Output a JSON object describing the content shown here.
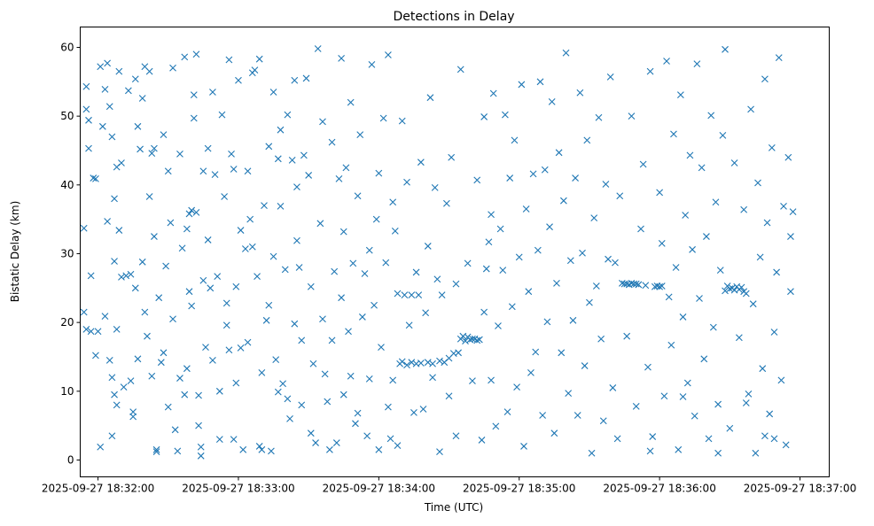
{
  "chart_data": {
    "type": "scatter",
    "title": "Detections in Delay",
    "xlabel": "Time (UTC)",
    "ylabel": "Bistatic Delay (km)",
    "x_unit": "seconds since 2025-09-27 18:32:00 UTC",
    "xlim": [
      -7.6,
      312.5
    ],
    "ylim": [
      -2.45,
      62.96
    ],
    "x_ticks": [
      0,
      60,
      120,
      180,
      240,
      300
    ],
    "x_tick_labels": [
      "2025-09-27 18:32:00",
      "2025-09-27 18:33:00",
      "2025-09-27 18:34:00",
      "2025-09-27 18:35:00",
      "2025-09-27 18:36:00",
      "2025-09-27 18:37:00"
    ],
    "y_ticks": [
      0,
      10,
      20,
      30,
      40,
      50,
      60
    ],
    "y_tick_labels": [
      "0",
      "10",
      "20",
      "30",
      "40",
      "50",
      "60"
    ],
    "marker": "x",
    "color": "#1f77b4",
    "grid": false,
    "points": [
      [
        -6,
        33.7
      ],
      [
        -6,
        21.5
      ],
      [
        -5,
        51
      ],
      [
        -5,
        54.3
      ],
      [
        -5,
        19
      ],
      [
        -4,
        49.4
      ],
      [
        -4,
        45.3
      ],
      [
        -3,
        26.8
      ],
      [
        -3,
        18.7
      ],
      [
        -2,
        41
      ],
      [
        -1,
        40.9
      ],
      [
        -1,
        15.2
      ],
      [
        0,
        18.7
      ],
      [
        1,
        1.9
      ],
      [
        1,
        57.2
      ],
      [
        2,
        48.5
      ],
      [
        3,
        53.9
      ],
      [
        3,
        20.9
      ],
      [
        4,
        57.7
      ],
      [
        4,
        34.7
      ],
      [
        5,
        14.5
      ],
      [
        5,
        51.4
      ],
      [
        6,
        47
      ],
      [
        6,
        3.5
      ],
      [
        6,
        12
      ],
      [
        7,
        9.5
      ],
      [
        7,
        38
      ],
      [
        7,
        28.9
      ],
      [
        8,
        42.6
      ],
      [
        8,
        8
      ],
      [
        8,
        19
      ],
      [
        9,
        56.5
      ],
      [
        9,
        33.4
      ],
      [
        10,
        26.6
      ],
      [
        10,
        43.2
      ],
      [
        11,
        10.6
      ],
      [
        12,
        26.8
      ],
      [
        13,
        53.7
      ],
      [
        14,
        11.5
      ],
      [
        14,
        27
      ],
      [
        15,
        7
      ],
      [
        15,
        6.3
      ],
      [
        16,
        25
      ],
      [
        16,
        55.4
      ],
      [
        17,
        48.5
      ],
      [
        17,
        14.7
      ],
      [
        18,
        45.2
      ],
      [
        19,
        28.8
      ],
      [
        19,
        52.6
      ],
      [
        20,
        57.2
      ],
      [
        20,
        21.5
      ],
      [
        21,
        18
      ],
      [
        22,
        56.5
      ],
      [
        22,
        38.3
      ],
      [
        23,
        44.6
      ],
      [
        23,
        12.2
      ],
      [
        24,
        32.5
      ],
      [
        24,
        45.3
      ],
      [
        25,
        1.2
      ],
      [
        25,
        1.5
      ],
      [
        26,
        23.6
      ],
      [
        27,
        14.2
      ],
      [
        28,
        47.3
      ],
      [
        28,
        15.6
      ],
      [
        29,
        28.2
      ],
      [
        30,
        42
      ],
      [
        30,
        7.7
      ],
      [
        31,
        34.5
      ],
      [
        32,
        20.5
      ],
      [
        32,
        57
      ],
      [
        33,
        4.4
      ],
      [
        34,
        1.3
      ],
      [
        35,
        11.9
      ],
      [
        35,
        44.5
      ],
      [
        36,
        30.8
      ],
      [
        37,
        58.6
      ],
      [
        37,
        9.5
      ],
      [
        38,
        13.3
      ],
      [
        38,
        33.6
      ],
      [
        39,
        35.8
      ],
      [
        39,
        24.5
      ],
      [
        40,
        36.3
      ],
      [
        40,
        22.4
      ],
      [
        41,
        53.1
      ],
      [
        41,
        49.7
      ],
      [
        42,
        59
      ],
      [
        42,
        36
      ],
      [
        43,
        9.4
      ],
      [
        43,
        5
      ],
      [
        44,
        0.6
      ],
      [
        44,
        1.9
      ],
      [
        45,
        26.1
      ],
      [
        45,
        42
      ],
      [
        46,
        16.4
      ],
      [
        47,
        45.3
      ],
      [
        47,
        32
      ],
      [
        48,
        25
      ],
      [
        49,
        53.5
      ],
      [
        49,
        14.5
      ],
      [
        50,
        41.5
      ],
      [
        51,
        26.7
      ],
      [
        52,
        10
      ],
      [
        52,
        3
      ],
      [
        53,
        50.2
      ],
      [
        54,
        38.3
      ],
      [
        55,
        22.8
      ],
      [
        55,
        19.6
      ],
      [
        56,
        58.2
      ],
      [
        56,
        16
      ],
      [
        57,
        44.5
      ],
      [
        58,
        3
      ],
      [
        58,
        42.3
      ],
      [
        59,
        25.2
      ],
      [
        59,
        11.2
      ],
      [
        60,
        55.2
      ],
      [
        61,
        16.3
      ],
      [
        61,
        33.4
      ],
      [
        62,
        1.5
      ],
      [
        63,
        30.7
      ],
      [
        64,
        17.1
      ],
      [
        64,
        42
      ],
      [
        65,
        35
      ],
      [
        66,
        56.3
      ],
      [
        66,
        31
      ],
      [
        67,
        56.7
      ],
      [
        68,
        26.7
      ],
      [
        69,
        58.3
      ],
      [
        69,
        2
      ],
      [
        70,
        1.5
      ],
      [
        70,
        12.7
      ],
      [
        71,
        37
      ],
      [
        72,
        20.3
      ],
      [
        73,
        45.6
      ],
      [
        73,
        22.5
      ],
      [
        74,
        1.3
      ],
      [
        75,
        53.5
      ],
      [
        75,
        29.6
      ],
      [
        76,
        14.6
      ],
      [
        77,
        9.9
      ],
      [
        77,
        43.8
      ],
      [
        78,
        48
      ],
      [
        78,
        36.9
      ],
      [
        79,
        11.1
      ],
      [
        80,
        27.7
      ],
      [
        81,
        50.2
      ],
      [
        81,
        8.9
      ],
      [
        82,
        6
      ],
      [
        83,
        43.6
      ],
      [
        84,
        19.8
      ],
      [
        84,
        55.2
      ],
      [
        85,
        31.9
      ],
      [
        85,
        39.7
      ],
      [
        86,
        28
      ],
      [
        87,
        8
      ],
      [
        87,
        17.4
      ],
      [
        88,
        44.3
      ],
      [
        89,
        55.5
      ],
      [
        90,
        41.4
      ],
      [
        91,
        25.2
      ],
      [
        91,
        3.9
      ],
      [
        92,
        14
      ],
      [
        93,
        2.5
      ],
      [
        94,
        59.8
      ],
      [
        95,
        34.4
      ],
      [
        96,
        20.5
      ],
      [
        96,
        49.2
      ],
      [
        97,
        12.5
      ],
      [
        98,
        8.5
      ],
      [
        99,
        1.5
      ],
      [
        100,
        17.4
      ],
      [
        100,
        46.2
      ],
      [
        101,
        27.4
      ],
      [
        102,
        2.5
      ],
      [
        103,
        40.9
      ],
      [
        104,
        23.6
      ],
      [
        104,
        58.4
      ],
      [
        105,
        9.5
      ],
      [
        105,
        33.2
      ],
      [
        106,
        42.5
      ],
      [
        107,
        18.7
      ],
      [
        108,
        52
      ],
      [
        108,
        12.2
      ],
      [
        109,
        28.6
      ],
      [
        110,
        5.3
      ],
      [
        111,
        6.8
      ],
      [
        111,
        38.4
      ],
      [
        112,
        47.3
      ],
      [
        113,
        20.8
      ],
      [
        114,
        27.1
      ],
      [
        115,
        3.5
      ],
      [
        116,
        30.5
      ],
      [
        116,
        11.8
      ],
      [
        117,
        57.5
      ],
      [
        118,
        22.5
      ],
      [
        119,
        35
      ],
      [
        120,
        41.7
      ],
      [
        120,
        1.5
      ],
      [
        121,
        16.4
      ],
      [
        122,
        49.7
      ],
      [
        123,
        28.7
      ],
      [
        124,
        7.7
      ],
      [
        124,
        58.9
      ],
      [
        125,
        3.1
      ],
      [
        126,
        11.6
      ],
      [
        126,
        37.5
      ],
      [
        127,
        33.3
      ],
      [
        128,
        24.2
      ],
      [
        128,
        2.1
      ],
      [
        129,
        14
      ],
      [
        130,
        14.3
      ],
      [
        130,
        49.3
      ],
      [
        131,
        24
      ],
      [
        132,
        13.8
      ],
      [
        132,
        40.4
      ],
      [
        133,
        19.6
      ],
      [
        134,
        24
      ],
      [
        134,
        14.2
      ],
      [
        135,
        6.9
      ],
      [
        136,
        14
      ],
      [
        136,
        27.3
      ],
      [
        137,
        24
      ],
      [
        138,
        14.1
      ],
      [
        138,
        43.3
      ],
      [
        139,
        7.4
      ],
      [
        140,
        21.4
      ],
      [
        141,
        14.2
      ],
      [
        141,
        31.1
      ],
      [
        142,
        52.7
      ],
      [
        143,
        12
      ],
      [
        143,
        14
      ],
      [
        144,
        39.6
      ],
      [
        145,
        26.3
      ],
      [
        146,
        14.4
      ],
      [
        146,
        1.2
      ],
      [
        147,
        24
      ],
      [
        148,
        14.2
      ],
      [
        149,
        37.3
      ],
      [
        150,
        9.3
      ],
      [
        150,
        14.8
      ],
      [
        151,
        44
      ],
      [
        152,
        15.5
      ],
      [
        153,
        3.5
      ],
      [
        153,
        25.6
      ],
      [
        154,
        15.6
      ],
      [
        155,
        17.6
      ],
      [
        155,
        56.8
      ],
      [
        156,
        18
      ],
      [
        157,
        17.3
      ],
      [
        158,
        17.9
      ],
      [
        158,
        28.6
      ],
      [
        159,
        17.5
      ],
      [
        160,
        17.6
      ],
      [
        160,
        11.5
      ],
      [
        161,
        17.6
      ],
      [
        162,
        17.4
      ],
      [
        162,
        40.7
      ],
      [
        163,
        17.5
      ],
      [
        164,
        2.9
      ],
      [
        165,
        21.5
      ],
      [
        165,
        49.9
      ],
      [
        166,
        27.8
      ],
      [
        167,
        31.7
      ],
      [
        168,
        11.6
      ],
      [
        168,
        35.7
      ],
      [
        169,
        53.3
      ],
      [
        170,
        4.9
      ],
      [
        171,
        19.5
      ],
      [
        172,
        33.6
      ],
      [
        173,
        27.6
      ],
      [
        174,
        50.2
      ],
      [
        175,
        7
      ],
      [
        176,
        41
      ],
      [
        177,
        22.3
      ],
      [
        178,
        46.5
      ],
      [
        179,
        10.6
      ],
      [
        180,
        29.5
      ],
      [
        181,
        54.6
      ],
      [
        182,
        2
      ],
      [
        183,
        36.5
      ],
      [
        184,
        24.5
      ],
      [
        185,
        12.7
      ],
      [
        186,
        41.6
      ],
      [
        187,
        15.7
      ],
      [
        188,
        30.5
      ],
      [
        189,
        55
      ],
      [
        190,
        6.5
      ],
      [
        191,
        42.2
      ],
      [
        192,
        20.1
      ],
      [
        193,
        33.9
      ],
      [
        194,
        52.1
      ],
      [
        195,
        3.9
      ],
      [
        196,
        25.7
      ],
      [
        197,
        44.7
      ],
      [
        198,
        15.6
      ],
      [
        199,
        37.7
      ],
      [
        200,
        59.2
      ],
      [
        201,
        9.7
      ],
      [
        202,
        29
      ],
      [
        203,
        20.3
      ],
      [
        204,
        41
      ],
      [
        205,
        6.5
      ],
      [
        206,
        53.4
      ],
      [
        207,
        30.1
      ],
      [
        208,
        13.7
      ],
      [
        209,
        46.5
      ],
      [
        210,
        22.9
      ],
      [
        211,
        1
      ],
      [
        212,
        35.2
      ],
      [
        213,
        25.3
      ],
      [
        214,
        49.8
      ],
      [
        215,
        17.6
      ],
      [
        216,
        5.7
      ],
      [
        217,
        40.1
      ],
      [
        218,
        29.2
      ],
      [
        219,
        55.7
      ],
      [
        220,
        10.5
      ],
      [
        221,
        28.7
      ],
      [
        222,
        3.1
      ],
      [
        223,
        38.4
      ],
      [
        224,
        25.7
      ],
      [
        225,
        25.6
      ],
      [
        226,
        25.6
      ],
      [
        227,
        25.5
      ],
      [
        228,
        25.7
      ],
      [
        229,
        25.6
      ],
      [
        230,
        25.6
      ],
      [
        231,
        25.5
      ],
      [
        226,
        18
      ],
      [
        228,
        50
      ],
      [
        230,
        7.8
      ],
      [
        232,
        33.6
      ],
      [
        233,
        43
      ],
      [
        234,
        25.4
      ],
      [
        235,
        13.5
      ],
      [
        236,
        56.5
      ],
      [
        237,
        3.4
      ],
      [
        238,
        25.2
      ],
      [
        239,
        25.3
      ],
      [
        240,
        25.2
      ],
      [
        241,
        25.3
      ],
      [
        240,
        38.9
      ],
      [
        241,
        31.5
      ],
      [
        242,
        9.3
      ],
      [
        243,
        58
      ],
      [
        244,
        23.7
      ],
      [
        245,
        16.7
      ],
      [
        246,
        47.4
      ],
      [
        247,
        28
      ],
      [
        248,
        1.5
      ],
      [
        249,
        53.1
      ],
      [
        250,
        20.8
      ],
      [
        251,
        35.6
      ],
      [
        252,
        11.2
      ],
      [
        253,
        44.3
      ],
      [
        254,
        30.6
      ],
      [
        255,
        6.4
      ],
      [
        256,
        57.6
      ],
      [
        257,
        23.5
      ],
      [
        258,
        42.5
      ],
      [
        259,
        14.7
      ],
      [
        260,
        32.5
      ],
      [
        261,
        3.1
      ],
      [
        262,
        50.1
      ],
      [
        263,
        19.3
      ],
      [
        264,
        37.5
      ],
      [
        265,
        8.1
      ],
      [
        266,
        27.6
      ],
      [
        267,
        47.2
      ],
      [
        268,
        24.6
      ],
      [
        269,
        25.3
      ],
      [
        270,
        24.9
      ],
      [
        271,
        25
      ],
      [
        272,
        24.7
      ],
      [
        273,
        25.2
      ],
      [
        274,
        24.8
      ],
      [
        275,
        25.1
      ],
      [
        276,
        24.5
      ],
      [
        277,
        24.2
      ],
      [
        268,
        59.7
      ],
      [
        270,
        4.6
      ],
      [
        272,
        43.2
      ],
      [
        274,
        17.8
      ],
      [
        276,
        36.4
      ],
      [
        278,
        9.6
      ],
      [
        279,
        51
      ],
      [
        280,
        22.7
      ],
      [
        281,
        1
      ],
      [
        282,
        40.3
      ],
      [
        283,
        29.5
      ],
      [
        284,
        13.3
      ],
      [
        285,
        55.4
      ],
      [
        286,
        34.5
      ],
      [
        287,
        6.7
      ],
      [
        288,
        45.4
      ],
      [
        289,
        18.6
      ],
      [
        290,
        27.3
      ],
      [
        291,
        58.5
      ],
      [
        292,
        11.6
      ],
      [
        293,
        36.9
      ],
      [
        294,
        2.2
      ],
      [
        295,
        44
      ],
      [
        296,
        24.5
      ],
      [
        296,
        32.5
      ],
      [
        297,
        36.1
      ],
      [
        289,
        3.1
      ],
      [
        285,
        3.5
      ],
      [
        277,
        8.3
      ],
      [
        265,
        1
      ],
      [
        250,
        9.2
      ],
      [
        236,
        1.3
      ]
    ]
  }
}
